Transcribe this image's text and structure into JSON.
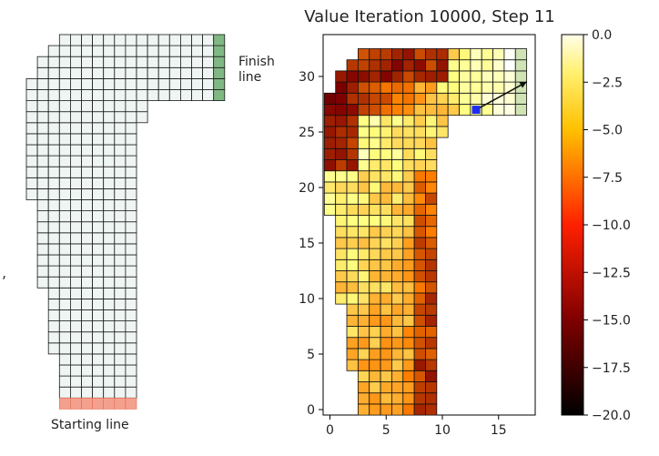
{
  "left_track": {
    "finish_label": "Finish\nline",
    "start_label": "Starting line",
    "finish_color": "#80b884",
    "start_color": "#f4a08e",
    "cell_color": "#eef5f3"
  },
  "chart_data": {
    "type": "heatmap",
    "title": "Value Iteration 10000, Step 11",
    "xlabel": "",
    "ylabel": "",
    "xlim": [
      -0.5,
      18.5
    ],
    "ylim": [
      -0.5,
      33.5
    ],
    "xticks": [
      "0",
      "5",
      "10",
      "15"
    ],
    "yticks": [
      "0",
      "5",
      "10",
      "15",
      "20",
      "25",
      "30"
    ],
    "colormap": "afmhot",
    "colorbar": {
      "min": -20.0,
      "max": 0.0,
      "ticks": [
        "0.0",
        "−2.5",
        "−5.0",
        "−7.5",
        "−10.0",
        "−12.5",
        "−15.0",
        "−17.5",
        "−20.0"
      ]
    },
    "row_spans": [
      [
        3,
        9
      ],
      [
        3,
        9
      ],
      [
        3,
        9
      ],
      [
        3,
        9
      ],
      [
        2,
        9
      ],
      [
        2,
        9
      ],
      [
        2,
        9
      ],
      [
        2,
        9
      ],
      [
        2,
        9
      ],
      [
        2,
        9
      ],
      [
        1,
        9
      ],
      [
        1,
        9
      ],
      [
        1,
        9
      ],
      [
        1,
        9
      ],
      [
        1,
        9
      ],
      [
        1,
        9
      ],
      [
        1,
        9
      ],
      [
        1,
        9
      ],
      [
        0,
        9
      ],
      [
        0,
        9
      ],
      [
        0,
        9
      ],
      [
        0,
        9
      ],
      [
        0,
        9
      ],
      [
        0,
        9
      ],
      [
        0,
        9
      ],
      [
        0,
        10
      ],
      [
        0,
        10
      ],
      [
        0,
        17
      ],
      [
        0,
        17
      ],
      [
        1,
        17
      ],
      [
        1,
        17
      ],
      [
        2,
        17
      ],
      [
        3,
        17
      ]
    ],
    "finish_columns": [
      17
    ],
    "finish_rows": [
      27,
      32
    ],
    "car_position": [
      13,
      27
    ],
    "velocity_arrow_to": [
      17.5,
      29.5
    ]
  }
}
